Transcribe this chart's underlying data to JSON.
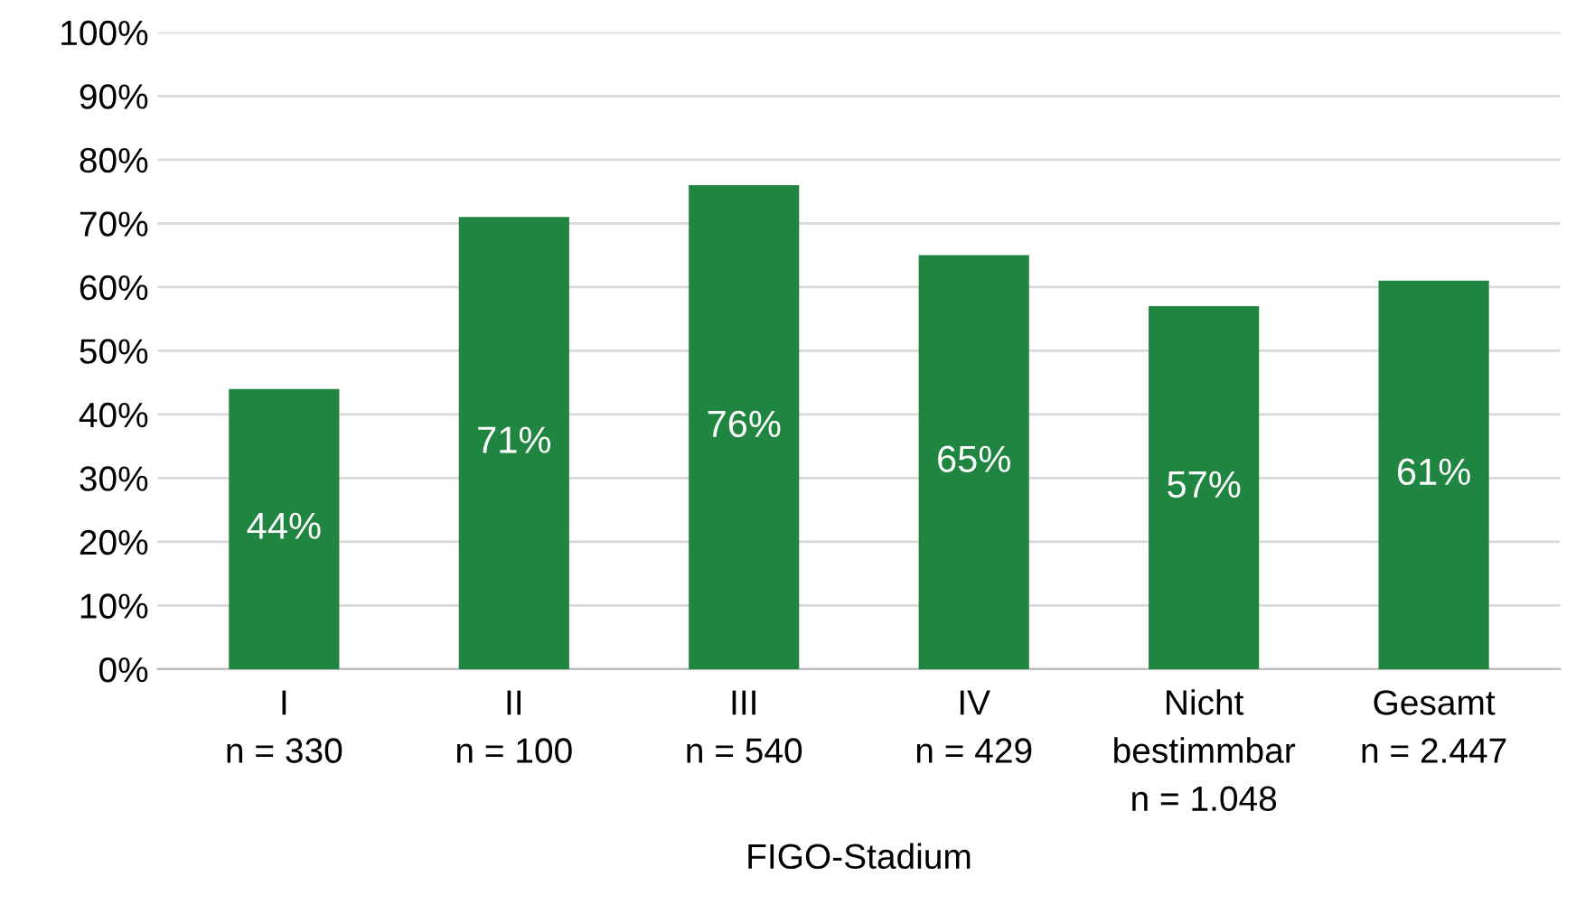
{
  "chart_data": {
    "type": "bar",
    "xlabel": "FIGO-Stadium",
    "categories": [
      "I\nn = 330",
      "II\nn = 100",
      "III\nn = 540",
      "IV\nn = 429",
      "Nicht\nbestimmbar\nn = 1.048",
      "Gesamt\nn = 2.447"
    ],
    "values": [
      44,
      71,
      76,
      65,
      57,
      61
    ],
    "value_labels": [
      "44%",
      "71%",
      "76%",
      "65%",
      "57%",
      "61%"
    ],
    "color": "#1f8540",
    "ylim": [
      0,
      100
    ],
    "yticks": [
      {
        "value": 0,
        "label": "0%"
      },
      {
        "value": 10,
        "label": "10%"
      },
      {
        "value": 20,
        "label": "20%"
      },
      {
        "value": 30,
        "label": "30%"
      },
      {
        "value": 40,
        "label": "40%"
      },
      {
        "value": 50,
        "label": "50%"
      },
      {
        "value": 60,
        "label": "60%"
      },
      {
        "value": 70,
        "label": "70%"
      },
      {
        "value": 80,
        "label": "80%"
      },
      {
        "value": 90,
        "label": "90%"
      },
      {
        "value": 100,
        "label": "100%"
      }
    ],
    "grid": "y",
    "legend": false
  }
}
